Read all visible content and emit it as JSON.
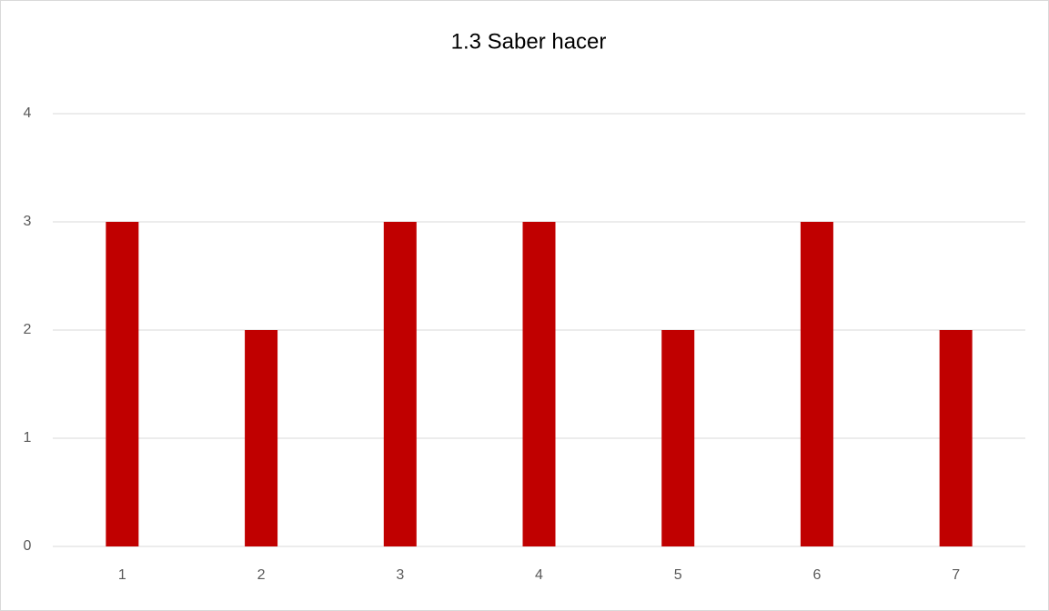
{
  "chart_data": {
    "type": "bar",
    "title": "1.3 Saber hacer",
    "categories": [
      "1",
      "2",
      "3",
      "4",
      "5",
      "6",
      "7"
    ],
    "values": [
      3,
      2,
      3,
      3,
      2,
      3,
      2
    ],
    "color": "#c00000",
    "ylim": [
      0,
      4
    ],
    "yticks": [
      0,
      1,
      2,
      3,
      4
    ],
    "grid": true
  }
}
